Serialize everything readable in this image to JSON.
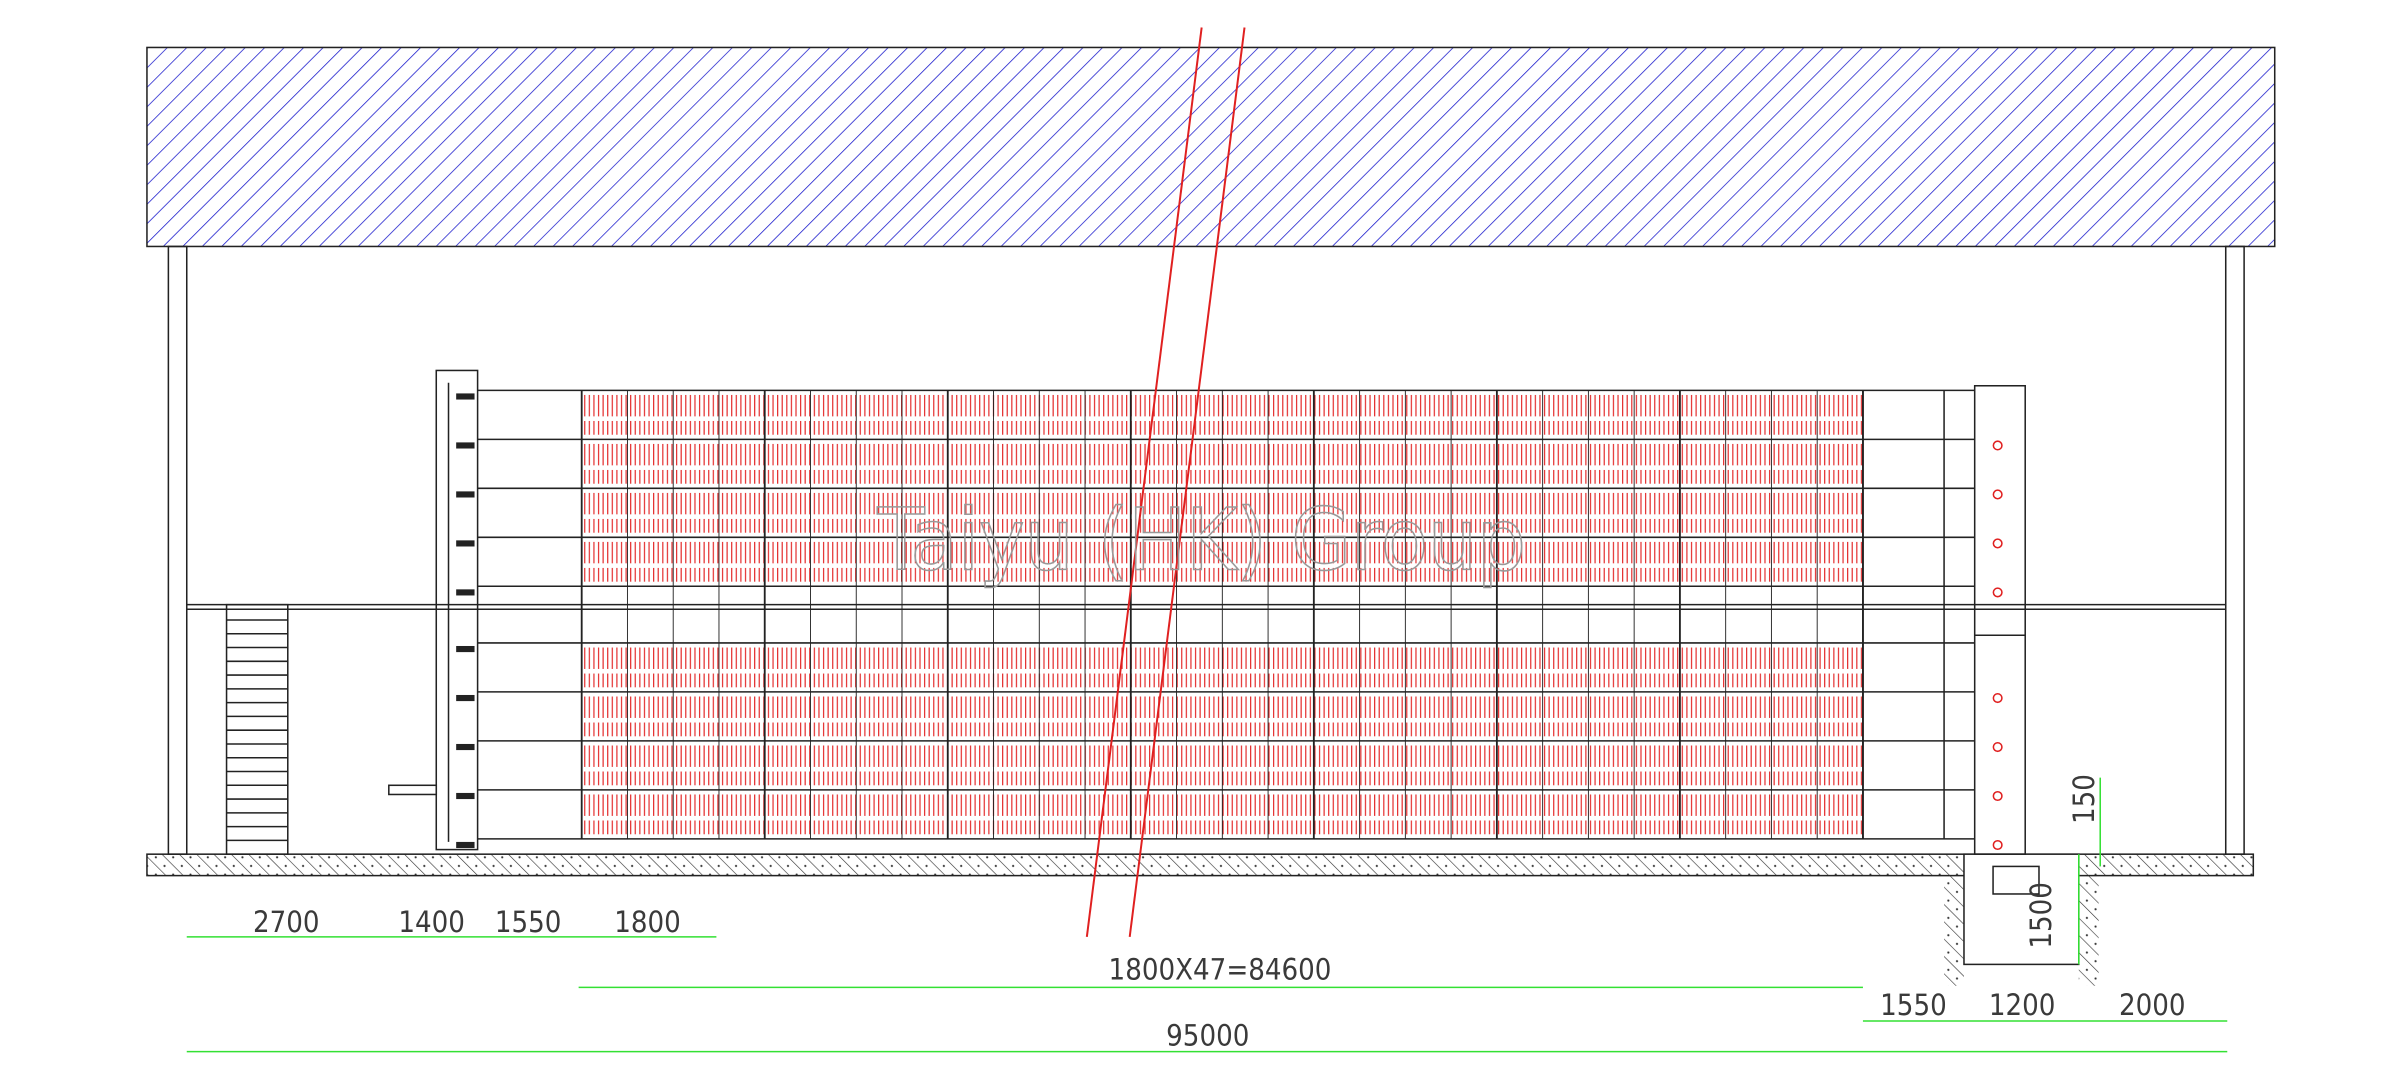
{
  "watermark": "Taiyu (HK) Group",
  "dimensions": {
    "bottom_row1": [
      "2700",
      "1400",
      "1550",
      "1800"
    ],
    "cages": "1800X47=84600",
    "right_row": [
      "1550",
      "1200",
      "2000"
    ],
    "total": "95000",
    "pit_top": "150",
    "pit_depth": "1500"
  }
}
